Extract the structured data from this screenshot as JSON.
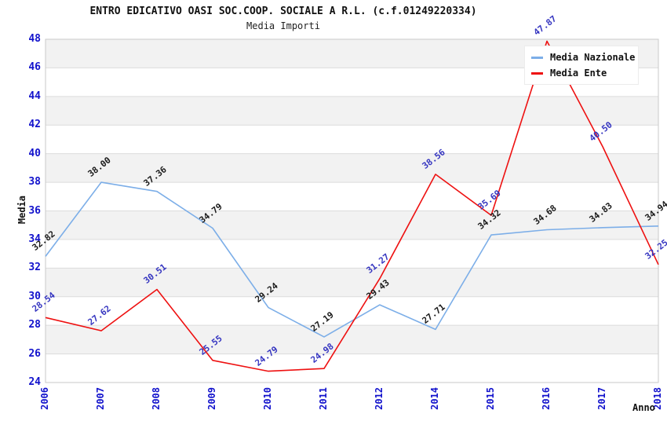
{
  "chart_data": {
    "type": "line",
    "title": "ENTRO EDICATIVO OASI SOC.COOP. SOCIALE A R.L. (c.f.01249220334)",
    "subtitle": "Media Importi",
    "xlabel": "Anno",
    "ylabel": "Media",
    "ylim": [
      24,
      48
    ],
    "ytick_step": 2,
    "grid": "horizontal-bands-alternating",
    "legend_position": "top-right-inside",
    "categories": [
      "2006",
      "2007",
      "2008",
      "2009",
      "2010",
      "2011",
      "2012",
      "2014",
      "2015",
      "2016",
      "2017",
      "2018"
    ],
    "series": [
      {
        "name": "Media Nazionale",
        "color": "#7caee8",
        "label_color": "#1a1a1a",
        "values": [
          32.82,
          38.0,
          37.36,
          34.79,
          29.24,
          27.19,
          29.43,
          27.71,
          34.32,
          34.68,
          34.83,
          34.94
        ]
      },
      {
        "name": "Media Ente",
        "color": "#ee1111",
        "label_color": "#3535c0",
        "values": [
          28.54,
          27.62,
          30.51,
          25.55,
          24.79,
          24.98,
          31.27,
          38.56,
          35.69,
          47.87,
          40.5,
          32.25
        ]
      }
    ]
  },
  "colors": {
    "tick_label": "#1212cc",
    "band_gray": "#f2f2f2",
    "band_white": "#ffffff",
    "grid_line": "#dcdcdc",
    "plot_border": "#c9c9c9"
  }
}
